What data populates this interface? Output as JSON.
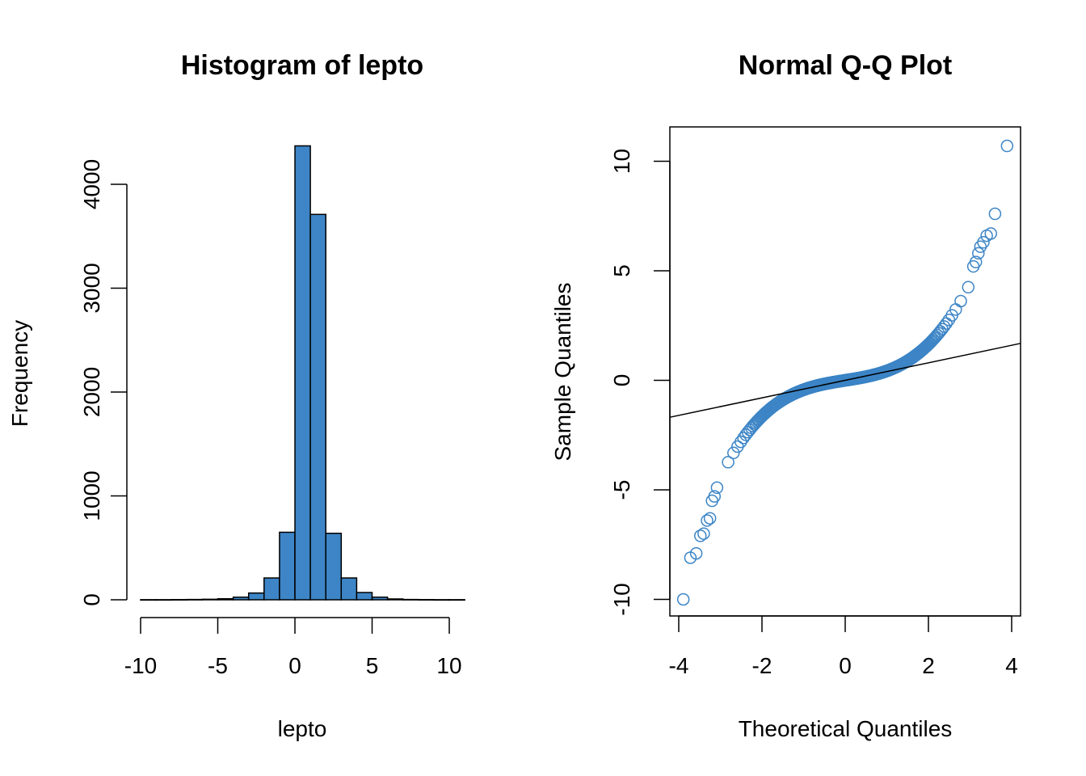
{
  "colors": {
    "bar_fill": "#3d85c6",
    "point_stroke": "#3d85c6",
    "axis": "#000000",
    "background": "#ffffff"
  },
  "chart_data": [
    {
      "type": "bar",
      "title": "Histogram of lepto",
      "xlabel": "lepto",
      "ylabel": "Frequency",
      "bin_edges": [
        -10,
        -9,
        -8,
        -7,
        -6,
        -5,
        -4,
        -3,
        -2,
        -1,
        0,
        1,
        2,
        3,
        4,
        5,
        6,
        7,
        8,
        9,
        10,
        11
      ],
      "values": [
        1,
        1,
        2,
        3,
        5,
        10,
        25,
        65,
        210,
        650,
        4370,
        3710,
        640,
        210,
        70,
        25,
        8,
        3,
        2,
        1,
        1
      ],
      "xlim": [
        -10,
        11
      ],
      "ylim": [
        0,
        4400
      ],
      "xticks": [
        "-10",
        "-5",
        "0",
        "5",
        "10"
      ],
      "yticks": [
        "0",
        "1000",
        "2000",
        "3000",
        "4000"
      ],
      "grid": false
    },
    {
      "type": "scatter",
      "title": "Normal Q-Q Plot",
      "xlabel": "Theoretical Quantiles",
      "ylabel": "Sample Quantiles",
      "xlim": [
        -4.15,
        4.15
      ],
      "ylim": [
        -10.7,
        11.5
      ],
      "xticks": [
        "-4",
        "-2",
        "0",
        "2",
        "4"
      ],
      "yticks": [
        "-10",
        "-5",
        "0",
        "5",
        "10"
      ],
      "reference_line": {
        "intercept": 0.0,
        "slope": 0.4
      },
      "curve": {
        "a": 0.3,
        "b": 0.13,
        "points": 10000
      },
      "outliers": [
        [
          -3.89,
          -10.0
        ],
        [
          -3.72,
          -8.1
        ],
        [
          -3.58,
          -7.9
        ],
        [
          -3.48,
          -7.1
        ],
        [
          -3.4,
          -7.0
        ],
        [
          -3.32,
          -6.4
        ],
        [
          -3.25,
          -6.3
        ],
        [
          -3.2,
          -5.5
        ],
        [
          -3.14,
          -5.3
        ],
        [
          -3.08,
          -4.9
        ],
        [
          3.08,
          5.2
        ],
        [
          3.14,
          5.4
        ],
        [
          3.2,
          5.8
        ],
        [
          3.25,
          6.1
        ],
        [
          3.32,
          6.3
        ],
        [
          3.4,
          6.6
        ],
        [
          3.5,
          6.7
        ],
        [
          3.6,
          7.6
        ],
        [
          3.89,
          10.7
        ]
      ],
      "grid": false
    }
  ]
}
